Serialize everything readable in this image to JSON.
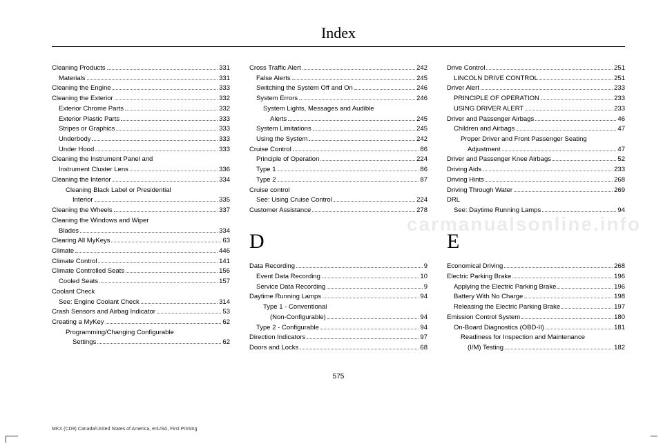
{
  "title": "Index",
  "pageNumber": "575",
  "footer": "MKX (CD9) Canada/United States of America, enUSA, First Printing",
  "watermark": "carmanualsonline.info",
  "columns": [
    {
      "entries": [
        {
          "label": "Cleaning Products",
          "page": "331",
          "level": 0
        },
        {
          "label": "Materials",
          "page": "331",
          "level": 1
        },
        {
          "label": "Cleaning the Engine",
          "page": "333",
          "level": 0
        },
        {
          "label": "Cleaning the Exterior",
          "page": "332",
          "level": 0
        },
        {
          "label": "Exterior Chrome Parts",
          "page": "332",
          "level": 1
        },
        {
          "label": "Exterior Plastic Parts",
          "page": "333",
          "level": 1
        },
        {
          "label": "Stripes or Graphics",
          "page": "333",
          "level": 1
        },
        {
          "label": "Underbody",
          "page": "333",
          "level": 1
        },
        {
          "label": "Under Hood",
          "page": "333",
          "level": 1
        },
        {
          "label": "Cleaning the Instrument Panel and",
          "label2": "Instrument Cluster Lens",
          "page": "336",
          "level": 0,
          "wrap": true
        },
        {
          "label": "Cleaning the Interior",
          "page": "334",
          "level": 0
        },
        {
          "label": "Cleaning Black Label or Presidential",
          "label2": "Interior",
          "page": "335",
          "level": 1,
          "wrap": true
        },
        {
          "label": "Cleaning the Wheels",
          "page": "337",
          "level": 0
        },
        {
          "label": "Cleaning the Windows and Wiper",
          "label2": "Blades",
          "page": "334",
          "level": 0,
          "wrap": true
        },
        {
          "label": "Clearing All MyKeys",
          "page": "63",
          "level": 0
        },
        {
          "label": "Climate",
          "page": "446",
          "level": 0
        },
        {
          "label": "Climate Control",
          "page": "141",
          "level": 0
        },
        {
          "label": "Climate Controlled Seats",
          "page": "156",
          "level": 0
        },
        {
          "label": "Cooled Seats",
          "page": "157",
          "level": 1
        },
        {
          "label": "Coolant Check",
          "level": 0,
          "nopage": true
        },
        {
          "label": "See: Engine Coolant Check",
          "page": "314",
          "level": 1
        },
        {
          "label": "Crash Sensors and Airbag Indicator",
          "page": "53",
          "level": 0
        },
        {
          "label": "Creating a MyKey",
          "page": "62",
          "level": 0
        },
        {
          "label": "Programming/Changing Configurable",
          "label2": "Settings",
          "page": "62",
          "level": 1,
          "wrap": true
        }
      ]
    },
    {
      "entries": [
        {
          "label": "Cross Traffic Alert",
          "page": "242",
          "level": 0
        },
        {
          "label": "False Alerts",
          "page": "245",
          "level": 1
        },
        {
          "label": "Switching the System Off and On",
          "page": "246",
          "level": 1
        },
        {
          "label": "System Errors",
          "page": "246",
          "level": 1
        },
        {
          "label": "System Lights, Messages and Audible",
          "label2": "Alerts",
          "page": "245",
          "level": 1,
          "wrap": true
        },
        {
          "label": "System Limitations",
          "page": "245",
          "level": 1
        },
        {
          "label": "Using the System",
          "page": "242",
          "level": 1
        },
        {
          "label": "Cruise Control",
          "page": "86",
          "level": 0
        },
        {
          "label": "Principle of Operation",
          "page": "224",
          "level": 1
        },
        {
          "label": "Type 1",
          "page": "86",
          "level": 1
        },
        {
          "label": "Type 2",
          "page": "87",
          "level": 1
        },
        {
          "label": "Cruise control",
          "level": 0,
          "nopage": true
        },
        {
          "label": "See: Using Cruise Control",
          "page": "224",
          "level": 1
        },
        {
          "label": "Customer Assistance",
          "page": "278",
          "level": 0
        }
      ],
      "sectionLetter": "D",
      "section2": [
        {
          "label": "Data Recording",
          "page": "9",
          "level": 0
        },
        {
          "label": "Event Data Recording",
          "page": "10",
          "level": 1
        },
        {
          "label": "Service Data Recording",
          "page": "9",
          "level": 1
        },
        {
          "label": "Daytime Running Lamps",
          "page": "94",
          "level": 0
        },
        {
          "label": "Type 1 - Conventional",
          "label2": "(Non-Configurable)",
          "page": "94",
          "level": 1,
          "wrap": true
        },
        {
          "label": "Type 2 - Configurable",
          "page": "94",
          "level": 1
        },
        {
          "label": "Direction Indicators",
          "page": "97",
          "level": 0
        },
        {
          "label": "Doors and Locks",
          "page": "68",
          "level": 0
        }
      ]
    },
    {
      "entries": [
        {
          "label": "Drive Control",
          "page": "251",
          "level": 0
        },
        {
          "label": "LINCOLN DRIVE CONTROL",
          "page": "251",
          "level": 1
        },
        {
          "label": "Driver Alert",
          "page": "233",
          "level": 0
        },
        {
          "label": "PRINCIPLE OF OPERATION",
          "page": "233",
          "level": 1
        },
        {
          "label": "USING DRIVER ALERT",
          "page": "233",
          "level": 1
        },
        {
          "label": "Driver and Passenger Airbags",
          "page": "46",
          "level": 0
        },
        {
          "label": "Children and Airbags",
          "page": "47",
          "level": 1
        },
        {
          "label": "Proper Driver and Front Passenger Seating",
          "label2": "Adjustment",
          "page": "47",
          "level": 1,
          "wrap": true
        },
        {
          "label": "Driver and Passenger Knee Airbags",
          "page": "52",
          "level": 0
        },
        {
          "label": "Driving Aids",
          "page": "233",
          "level": 0
        },
        {
          "label": "Driving Hints",
          "page": "268",
          "level": 0
        },
        {
          "label": "Driving Through Water",
          "page": "269",
          "level": 0
        },
        {
          "label": "DRL",
          "level": 0,
          "nopage": true
        },
        {
          "label": "See: Daytime Running Lamps",
          "page": "94",
          "level": 1
        }
      ],
      "sectionLetter": "E",
      "section2": [
        {
          "label": "Economical Driving",
          "page": "268",
          "level": 0
        },
        {
          "label": "Electric Parking Brake",
          "page": "196",
          "level": 0
        },
        {
          "label": "Applying the Electric Parking Brake",
          "page": "196",
          "level": 1
        },
        {
          "label": "Battery With No Charge",
          "page": "198",
          "level": 1
        },
        {
          "label": "Releasing the Electric Parking Brake",
          "page": "197",
          "level": 1
        },
        {
          "label": "Emission Control System",
          "page": "180",
          "level": 0
        },
        {
          "label": "On-Board Diagnostics (OBD-II)",
          "page": "181",
          "level": 1
        },
        {
          "label": "Readiness for Inspection and Maintenance",
          "label2": "(I/M) Testing",
          "page": "182",
          "level": 1,
          "wrap": true
        }
      ]
    }
  ]
}
